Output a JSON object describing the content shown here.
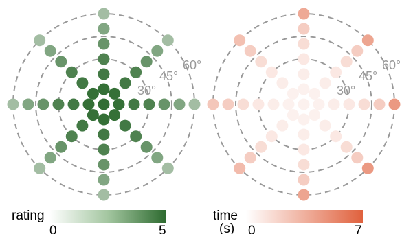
{
  "colors": {
    "ring": "#999999",
    "angle_label": "#999999",
    "rating_high": "#2d6a2f",
    "rating_low": "#ffffff",
    "time_high": "#e0613d",
    "time_low": "#ffffff"
  },
  "chart_data": [
    {
      "type": "scatter",
      "subtype": "polar",
      "angle_labels": [
        "30°",
        "45°",
        "60°"
      ],
      "rings_deg": [
        30,
        45,
        60
      ],
      "colorbar": {
        "title": "rating",
        "min": 0,
        "max": 5,
        "tick_labels": [
          "0",
          "5"
        ]
      },
      "points": [
        {
          "r": 0,
          "theta": 0,
          "value": 4.9
        },
        {
          "r": 10,
          "theta": 0,
          "value": 4.8
        },
        {
          "r": 10,
          "theta": 45,
          "value": 4.8
        },
        {
          "r": 10,
          "theta": 90,
          "value": 4.8
        },
        {
          "r": 10,
          "theta": 135,
          "value": 4.8
        },
        {
          "r": 10,
          "theta": 180,
          "value": 4.8
        },
        {
          "r": 10,
          "theta": 225,
          "value": 4.8
        },
        {
          "r": 10,
          "theta": 270,
          "value": 4.8
        },
        {
          "r": 10,
          "theta": 315,
          "value": 4.8
        },
        {
          "r": 20,
          "theta": 0,
          "value": 4.5
        },
        {
          "r": 20,
          "theta": 45,
          "value": 4.5
        },
        {
          "r": 20,
          "theta": 90,
          "value": 4.5
        },
        {
          "r": 20,
          "theta": 135,
          "value": 4.5
        },
        {
          "r": 20,
          "theta": 180,
          "value": 4.5
        },
        {
          "r": 20,
          "theta": 225,
          "value": 4.5
        },
        {
          "r": 20,
          "theta": 270,
          "value": 4.5
        },
        {
          "r": 20,
          "theta": 315,
          "value": 4.5
        },
        {
          "r": 30,
          "theta": 0,
          "value": 4.2
        },
        {
          "r": 30,
          "theta": 45,
          "value": 4.2
        },
        {
          "r": 30,
          "theta": 90,
          "value": 4.2
        },
        {
          "r": 30,
          "theta": 135,
          "value": 4.2
        },
        {
          "r": 30,
          "theta": 180,
          "value": 4.2
        },
        {
          "r": 30,
          "theta": 225,
          "value": 4.2
        },
        {
          "r": 30,
          "theta": 270,
          "value": 4.2
        },
        {
          "r": 30,
          "theta": 315,
          "value": 4.2
        },
        {
          "r": 40,
          "theta": 0,
          "value": 3.6
        },
        {
          "r": 40,
          "theta": 45,
          "value": 3.6
        },
        {
          "r": 40,
          "theta": 90,
          "value": 3.6
        },
        {
          "r": 40,
          "theta": 135,
          "value": 3.6
        },
        {
          "r": 40,
          "theta": 180,
          "value": 3.6
        },
        {
          "r": 40,
          "theta": 225,
          "value": 3.6
        },
        {
          "r": 40,
          "theta": 270,
          "value": 3.6
        },
        {
          "r": 40,
          "theta": 315,
          "value": 3.6
        },
        {
          "r": 50,
          "theta": 0,
          "value": 3.0
        },
        {
          "r": 50,
          "theta": 45,
          "value": 3.0
        },
        {
          "r": 50,
          "theta": 90,
          "value": 3.0
        },
        {
          "r": 50,
          "theta": 135,
          "value": 3.0
        },
        {
          "r": 50,
          "theta": 180,
          "value": 3.0
        },
        {
          "r": 50,
          "theta": 225,
          "value": 3.0
        },
        {
          "r": 50,
          "theta": 270,
          "value": 3.0
        },
        {
          "r": 50,
          "theta": 315,
          "value": 3.0
        },
        {
          "r": 60,
          "theta": 0,
          "value": 2.2
        },
        {
          "r": 60,
          "theta": 45,
          "value": 2.2
        },
        {
          "r": 60,
          "theta": 90,
          "value": 2.2
        },
        {
          "r": 60,
          "theta": 135,
          "value": 2.2
        },
        {
          "r": 60,
          "theta": 180,
          "value": 2.2
        },
        {
          "r": 60,
          "theta": 225,
          "value": 2.2
        },
        {
          "r": 60,
          "theta": 270,
          "value": 2.2
        },
        {
          "r": 60,
          "theta": 315,
          "value": 2.2
        }
      ]
    },
    {
      "type": "scatter",
      "subtype": "polar",
      "angle_labels": [
        "30°",
        "45°",
        "60°"
      ],
      "rings_deg": [
        30,
        45,
        60
      ],
      "colorbar": {
        "title": "time (s)",
        "title_lines": [
          "time",
          "(s)"
        ],
        "min": 0,
        "max": 7,
        "tick_labels": [
          "0",
          "7"
        ]
      },
      "points": [
        {
          "r": 0,
          "theta": 0,
          "value": 0.6
        },
        {
          "r": 10,
          "theta": 0,
          "value": 0.6
        },
        {
          "r": 10,
          "theta": 45,
          "value": 0.6
        },
        {
          "r": 10,
          "theta": 90,
          "value": 0.6
        },
        {
          "r": 10,
          "theta": 135,
          "value": 0.6
        },
        {
          "r": 10,
          "theta": 180,
          "value": 0.6
        },
        {
          "r": 10,
          "theta": 225,
          "value": 0.6
        },
        {
          "r": 10,
          "theta": 270,
          "value": 0.6
        },
        {
          "r": 10,
          "theta": 315,
          "value": 0.6
        },
        {
          "r": 20,
          "theta": 0,
          "value": 0.8
        },
        {
          "r": 20,
          "theta": 45,
          "value": 0.8
        },
        {
          "r": 20,
          "theta": 90,
          "value": 0.8
        },
        {
          "r": 20,
          "theta": 135,
          "value": 0.8
        },
        {
          "r": 20,
          "theta": 180,
          "value": 0.8
        },
        {
          "r": 20,
          "theta": 225,
          "value": 0.8
        },
        {
          "r": 20,
          "theta": 270,
          "value": 0.8
        },
        {
          "r": 20,
          "theta": 315,
          "value": 0.8
        },
        {
          "r": 30,
          "theta": 0,
          "value": 1.0
        },
        {
          "r": 30,
          "theta": 45,
          "value": 1.0
        },
        {
          "r": 30,
          "theta": 90,
          "value": 1.0
        },
        {
          "r": 30,
          "theta": 135,
          "value": 1.0
        },
        {
          "r": 30,
          "theta": 180,
          "value": 1.0
        },
        {
          "r": 30,
          "theta": 225,
          "value": 1.0
        },
        {
          "r": 30,
          "theta": 270,
          "value": 1.0
        },
        {
          "r": 30,
          "theta": 315,
          "value": 1.0
        },
        {
          "r": 40,
          "theta": 0,
          "value": 1.5
        },
        {
          "r": 40,
          "theta": 45,
          "value": 1.5
        },
        {
          "r": 40,
          "theta": 90,
          "value": 1.5
        },
        {
          "r": 40,
          "theta": 135,
          "value": 1.5
        },
        {
          "r": 40,
          "theta": 180,
          "value": 1.5
        },
        {
          "r": 40,
          "theta": 225,
          "value": 1.5
        },
        {
          "r": 40,
          "theta": 270,
          "value": 1.5
        },
        {
          "r": 40,
          "theta": 315,
          "value": 1.5
        },
        {
          "r": 50,
          "theta": 0,
          "value": 2.2
        },
        {
          "r": 50,
          "theta": 45,
          "value": 2.2
        },
        {
          "r": 50,
          "theta": 90,
          "value": 2.2
        },
        {
          "r": 50,
          "theta": 135,
          "value": 2.2
        },
        {
          "r": 50,
          "theta": 180,
          "value": 2.2
        },
        {
          "r": 50,
          "theta": 225,
          "value": 2.2
        },
        {
          "r": 50,
          "theta": 270,
          "value": 2.2
        },
        {
          "r": 50,
          "theta": 315,
          "value": 2.2
        },
        {
          "r": 60,
          "theta": 0,
          "value": 4.5
        },
        {
          "r": 60,
          "theta": 45,
          "value": 4.0
        },
        {
          "r": 60,
          "theta": 90,
          "value": 3.8
        },
        {
          "r": 60,
          "theta": 135,
          "value": 2.8
        },
        {
          "r": 60,
          "theta": 180,
          "value": 2.5
        },
        {
          "r": 60,
          "theta": 225,
          "value": 3.0
        },
        {
          "r": 60,
          "theta": 270,
          "value": 4.0
        },
        {
          "r": 60,
          "theta": 315,
          "value": 4.5
        }
      ]
    }
  ]
}
